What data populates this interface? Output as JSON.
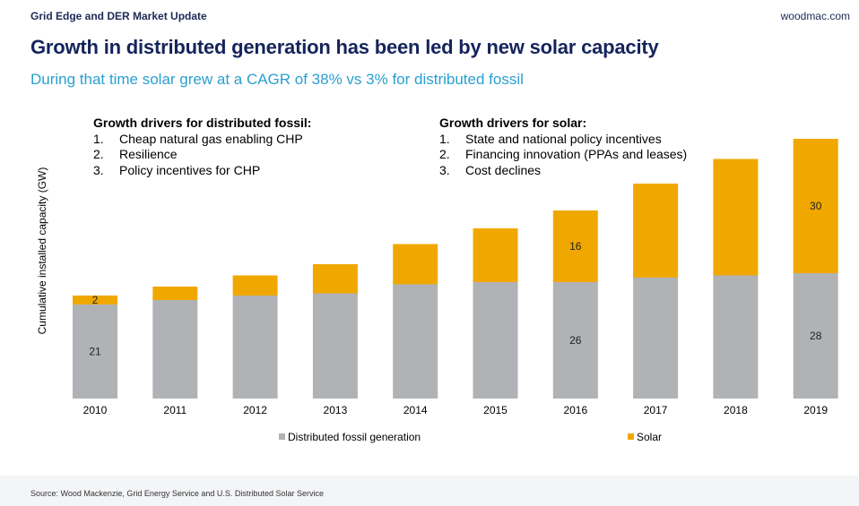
{
  "header": {
    "section": "Grid Edge and DER Market Update",
    "brand": "woodmac.com"
  },
  "title": "Growth in distributed generation has been led by new solar capacity",
  "subtitle": "During that time solar grew at a CAGR of 38% vs 3% for distributed fossil",
  "drivers": {
    "fossil": {
      "heading": "Growth drivers for distributed fossil:",
      "items": [
        {
          "num": "1.",
          "text": "Cheap natural gas enabling CHP"
        },
        {
          "num": "2.",
          "text": "Resilience"
        },
        {
          "num": "3.",
          "text": "Policy incentives for CHP"
        }
      ]
    },
    "solar": {
      "heading": "Growth drivers for solar:",
      "items": [
        {
          "num": "1.",
          "text": "State and national policy incentives"
        },
        {
          "num": "2.",
          "text": "Financing innovation (PPAs and leases)"
        },
        {
          "num": "3.",
          "text": "Cost declines"
        }
      ]
    }
  },
  "source": "Source: Wood Mackenzie, Grid Energy Service and U.S. Distributed Solar Service",
  "colors": {
    "fossil": "#b1b2b6",
    "solar": "#f0a800",
    "title": "#15245c",
    "subtitle": "#2a9fd0"
  },
  "chart_data": {
    "type": "bar",
    "stacked": true,
    "categories": [
      "2010",
      "2011",
      "2012",
      "2013",
      "2014",
      "2015",
      "2016",
      "2017",
      "2018",
      "2019"
    ],
    "series": [
      {
        "name": "Distributed fossil generation",
        "values": [
          21,
          22,
          23,
          23.5,
          25.5,
          26,
          26,
          27,
          27.5,
          28
        ],
        "labels": [
          "21",
          "",
          "",
          "",
          "",
          "",
          "26",
          "",
          "",
          "28"
        ]
      },
      {
        "name": "Solar",
        "values": [
          2,
          3,
          4.5,
          6.5,
          9,
          12,
          16,
          21,
          26,
          30
        ],
        "labels": [
          "2",
          "",
          "",
          "",
          "",
          "",
          "16",
          "",
          "",
          "30"
        ]
      }
    ],
    "ylabel": "Cumulative installed capacity (GW)",
    "ylim": [
      0,
      59
    ],
    "grid": false,
    "legend": "bottom"
  }
}
